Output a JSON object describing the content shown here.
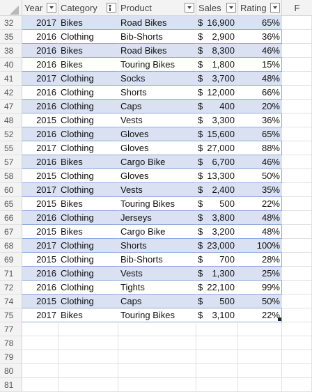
{
  "columns": {
    "rownum": "",
    "year": "Year",
    "category": "Category",
    "product": "Product",
    "sales": "Sales",
    "rating": "Rating",
    "f": "F"
  },
  "currency_symbol": "$",
  "colors": {
    "band": "#d9e1f2",
    "border": "#8ea9db",
    "header_bg": "#f3f3f3"
  },
  "rows": [
    {
      "rownum": "32",
      "year": "2017",
      "category": "Bikes",
      "product": "Road Bikes",
      "sales": "16,900",
      "rating": "65%"
    },
    {
      "rownum": "35",
      "year": "2016",
      "category": "Clothing",
      "product": "Bib-Shorts",
      "sales": "2,900",
      "rating": "36%"
    },
    {
      "rownum": "38",
      "year": "2016",
      "category": "Bikes",
      "product": "Road Bikes",
      "sales": "8,300",
      "rating": "46%"
    },
    {
      "rownum": "40",
      "year": "2016",
      "category": "Bikes",
      "product": "Touring Bikes",
      "sales": "1,800",
      "rating": "15%"
    },
    {
      "rownum": "41",
      "year": "2017",
      "category": "Clothing",
      "product": "Socks",
      "sales": "3,700",
      "rating": "48%"
    },
    {
      "rownum": "42",
      "year": "2016",
      "category": "Clothing",
      "product": "Shorts",
      "sales": "12,000",
      "rating": "66%"
    },
    {
      "rownum": "47",
      "year": "2016",
      "category": "Clothing",
      "product": "Caps",
      "sales": "400",
      "rating": "20%"
    },
    {
      "rownum": "48",
      "year": "2015",
      "category": "Clothing",
      "product": "Vests",
      "sales": "3,300",
      "rating": "36%"
    },
    {
      "rownum": "52",
      "year": "2016",
      "category": "Clothing",
      "product": "Gloves",
      "sales": "15,600",
      "rating": "65%"
    },
    {
      "rownum": "55",
      "year": "2017",
      "category": "Clothing",
      "product": "Gloves",
      "sales": "27,000",
      "rating": "88%"
    },
    {
      "rownum": "57",
      "year": "2016",
      "category": "Bikes",
      "product": "Cargo Bike",
      "sales": "6,700",
      "rating": "46%"
    },
    {
      "rownum": "58",
      "year": "2015",
      "category": "Clothing",
      "product": "Gloves",
      "sales": "13,300",
      "rating": "50%"
    },
    {
      "rownum": "60",
      "year": "2017",
      "category": "Clothing",
      "product": "Vests",
      "sales": "2,400",
      "rating": "35%"
    },
    {
      "rownum": "65",
      "year": "2015",
      "category": "Bikes",
      "product": "Touring Bikes",
      "sales": "500",
      "rating": "22%"
    },
    {
      "rownum": "66",
      "year": "2016",
      "category": "Clothing",
      "product": "Jerseys",
      "sales": "3,800",
      "rating": "48%"
    },
    {
      "rownum": "67",
      "year": "2015",
      "category": "Bikes",
      "product": "Cargo Bike",
      "sales": "3,200",
      "rating": "48%"
    },
    {
      "rownum": "68",
      "year": "2017",
      "category": "Clothing",
      "product": "Shorts",
      "sales": "23,000",
      "rating": "100%"
    },
    {
      "rownum": "69",
      "year": "2015",
      "category": "Clothing",
      "product": "Bib-Shorts",
      "sales": "700",
      "rating": "28%"
    },
    {
      "rownum": "71",
      "year": "2016",
      "category": "Clothing",
      "product": "Vests",
      "sales": "1,300",
      "rating": "25%"
    },
    {
      "rownum": "72",
      "year": "2016",
      "category": "Clothing",
      "product": "Tights",
      "sales": "22,100",
      "rating": "99%"
    },
    {
      "rownum": "74",
      "year": "2015",
      "category": "Clothing",
      "product": "Caps",
      "sales": "500",
      "rating": "50%"
    },
    {
      "rownum": "75",
      "year": "2017",
      "category": "Bikes",
      "product": "Touring Bikes",
      "sales": "3,100",
      "rating": "22%"
    }
  ],
  "empty_rows": [
    "77",
    "78",
    "79",
    "80",
    "81"
  ]
}
